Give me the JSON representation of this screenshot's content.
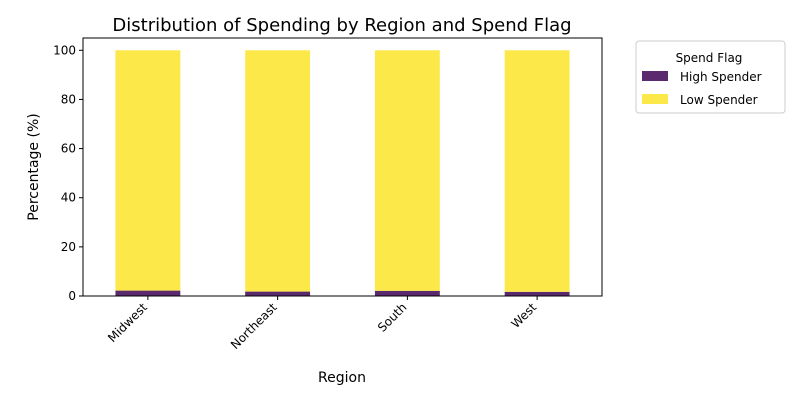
{
  "chart_data": {
    "type": "bar",
    "stacked": true,
    "title": "Distribution of Spending by Region and Spend Flag",
    "xlabel": "Region",
    "ylabel": "Percentage (%)",
    "categories": [
      "Midwest",
      "Northeast",
      "South",
      "West"
    ],
    "ylim": [
      0,
      105
    ],
    "yticks": [
      0,
      20,
      40,
      60,
      80,
      100
    ],
    "ytick_labels": [
      "0",
      "20",
      "40",
      "60",
      "80",
      "100"
    ],
    "grid": false,
    "legend": {
      "title": "Spend Flag",
      "placement": "outside-top-right"
    },
    "series": [
      {
        "name": "High Spender",
        "color": "#5b2a6e",
        "values": [
          2.2,
          1.8,
          2.1,
          1.7
        ]
      },
      {
        "name": "Low Spender",
        "color": "#fde84a",
        "values": [
          97.8,
          98.2,
          97.9,
          98.3
        ]
      }
    ]
  }
}
